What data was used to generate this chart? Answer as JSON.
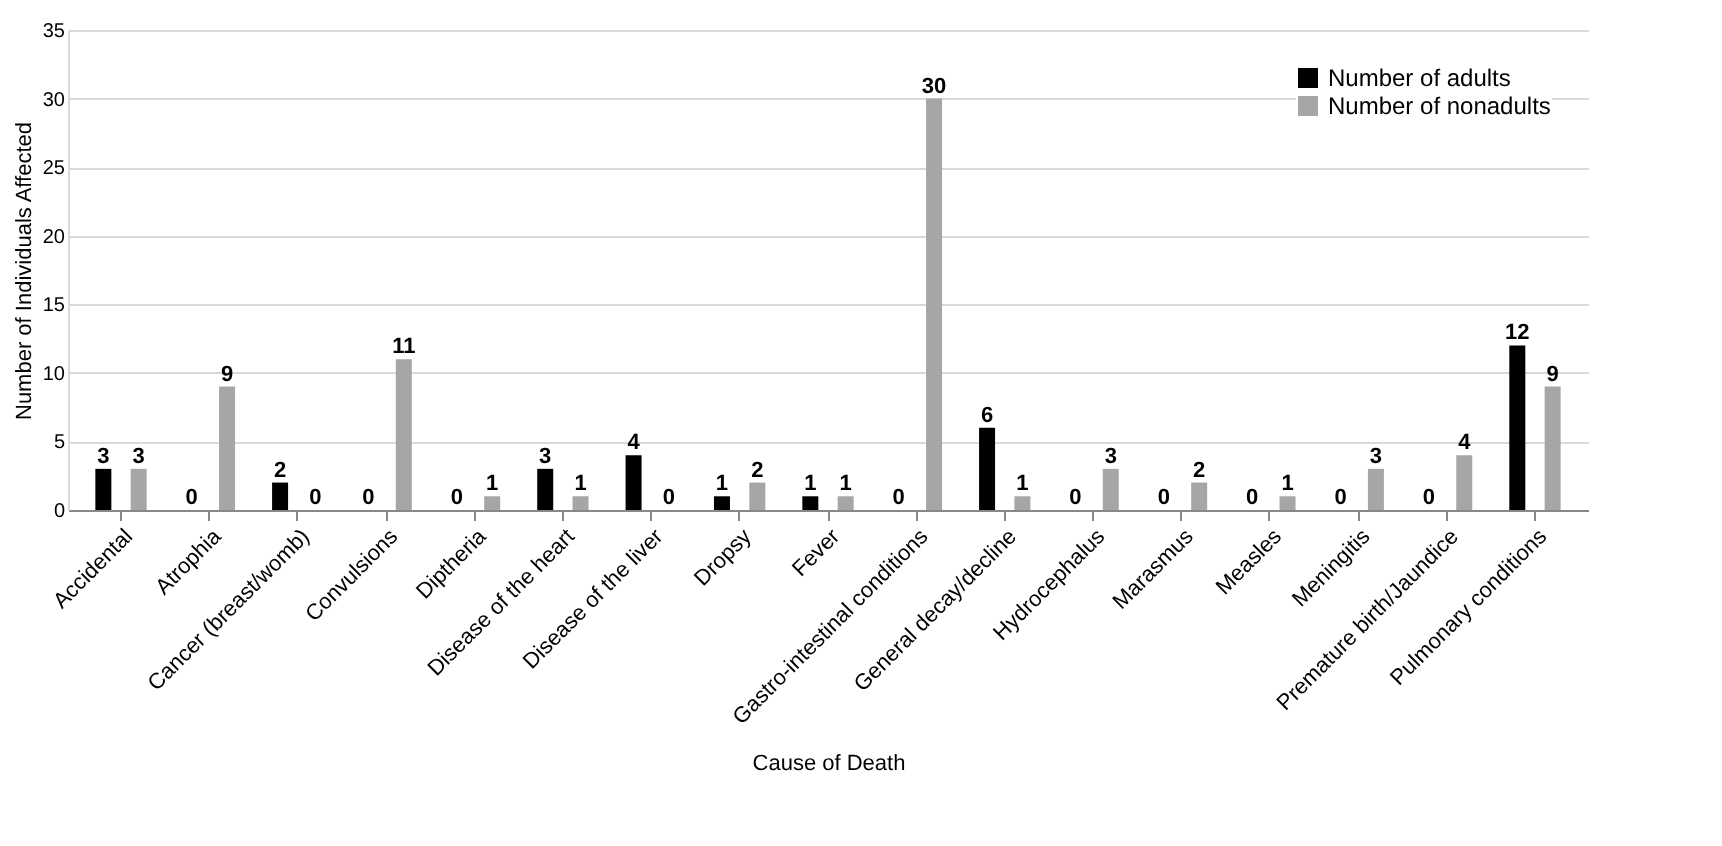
{
  "chart_data": {
    "type": "bar",
    "xlabel": "Cause of Death",
    "ylabel": "Number of Individuals Affected",
    "categories": [
      "Accidental",
      "Atrophia",
      "Cancer (breast/womb)",
      "Convulsions",
      "Diptheria",
      "Disease of the heart",
      "Disease of the liver",
      "Dropsy",
      "Fever",
      "Gastro-intestinal conditions",
      "General decay/decline",
      "Hydrocephalus",
      "Marasmus",
      "Measles",
      "Meningitis",
      "Premature birth/Jaundice",
      "Pulmonary conditions"
    ],
    "series": [
      {
        "name": "Number of adults",
        "color": "#000000",
        "values": [
          3,
          0,
          2,
          0,
          0,
          3,
          4,
          1,
          1,
          0,
          6,
          0,
          0,
          0,
          0,
          0,
          12
        ]
      },
      {
        "name": "Number of nonadults",
        "color": "#a6a6a6",
        "values": [
          3,
          9,
          0,
          11,
          1,
          1,
          0,
          2,
          1,
          30,
          1,
          3,
          2,
          1,
          3,
          4,
          9
        ]
      }
    ],
    "ylim": [
      0,
      35
    ],
    "yticks": [
      0,
      5,
      10,
      15,
      20,
      25,
      30,
      35
    ],
    "grid": "y",
    "legend": "top right",
    "data_labels": true
  }
}
